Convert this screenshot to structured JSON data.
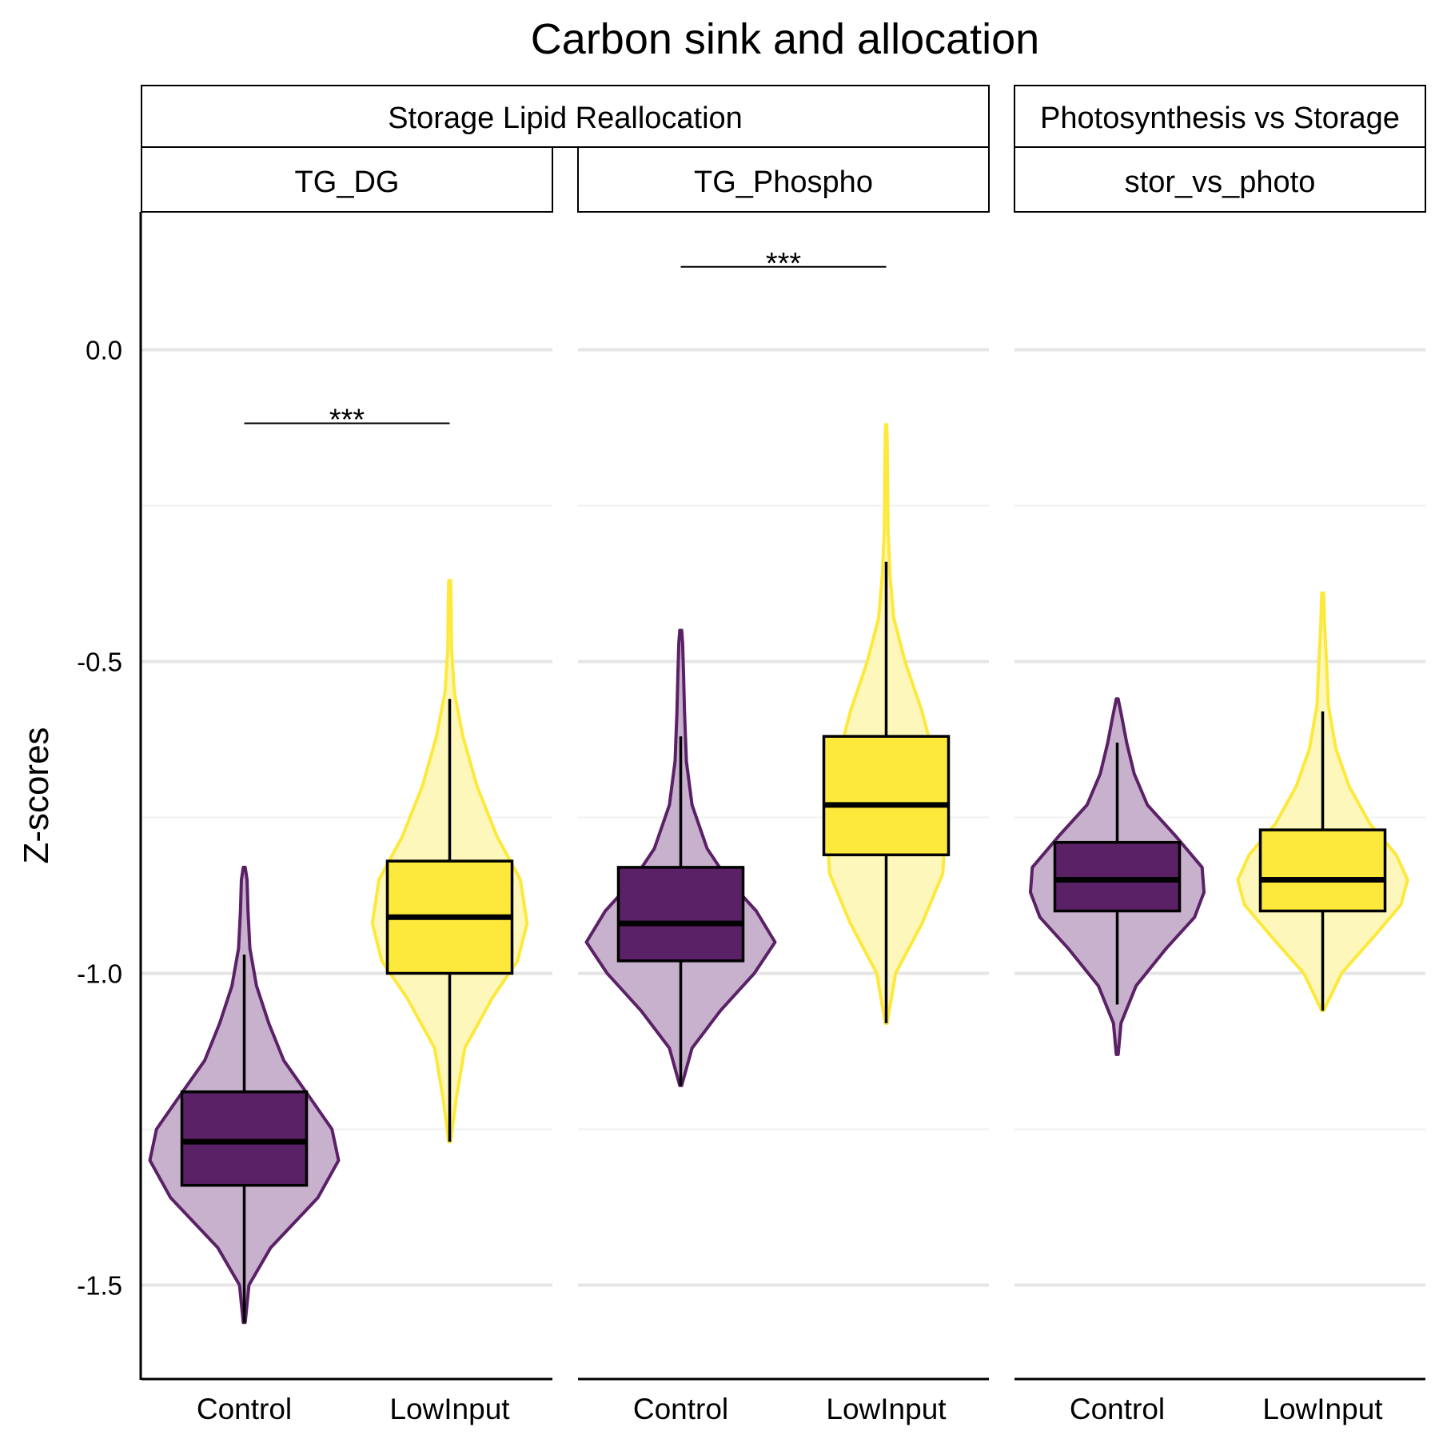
{
  "chart_data": {
    "type": "violin",
    "title": "Carbon sink and allocation",
    "ylabel": "Z-scores",
    "xlabel": "",
    "ylim": [
      -1.65,
      0.22
    ],
    "yticks": [
      0.0,
      -0.5,
      -1.0,
      -1.5
    ],
    "ytick_labels": [
      "0.0",
      "-0.5",
      "-1.0",
      "-1.5"
    ],
    "grid": true,
    "legend": "none",
    "colors": {
      "Control": "#5b2167",
      "Control_fill": "#c7b1cc",
      "LowInput": "#fde93b",
      "LowInput_fill": "#fdf7bc",
      "grid": "#e5e5e5"
    },
    "groups": [
      {
        "group": "Storage Lipid Reallocation",
        "panels": [
          {
            "panel": "TG_DG",
            "significance": "***",
            "sig_y": -0.118,
            "categories": [
              {
                "name": "Control",
                "violin_min": -1.56,
                "violin_max": -0.83,
                "whisker_low": -1.56,
                "whisker_high": -0.97,
                "q1": -1.34,
                "median": -1.27,
                "q3": -1.19,
                "density": [
                  [
                    -1.56,
                    0.01
                  ],
                  [
                    -1.5,
                    0.05
                  ],
                  [
                    -1.44,
                    0.28
                  ],
                  [
                    -1.36,
                    0.78
                  ],
                  [
                    -1.3,
                    1.0
                  ],
                  [
                    -1.25,
                    0.93
                  ],
                  [
                    -1.2,
                    0.7
                  ],
                  [
                    -1.14,
                    0.42
                  ],
                  [
                    -1.08,
                    0.26
                  ],
                  [
                    -1.02,
                    0.13
                  ],
                  [
                    -0.96,
                    0.06
                  ],
                  [
                    -0.9,
                    0.04
                  ],
                  [
                    -0.85,
                    0.03
                  ],
                  [
                    -0.83,
                    0.01
                  ]
                ]
              },
              {
                "name": "LowInput",
                "violin_min": -1.27,
                "violin_max": -0.37,
                "whisker_low": -1.27,
                "whisker_high": -0.56,
                "q1": -1.0,
                "median": -0.91,
                "q3": -0.82,
                "density": [
                  [
                    -1.27,
                    0.01
                  ],
                  [
                    -1.2,
                    0.07
                  ],
                  [
                    -1.12,
                    0.16
                  ],
                  [
                    -1.04,
                    0.45
                  ],
                  [
                    -0.98,
                    0.72
                  ],
                  [
                    -0.92,
                    0.82
                  ],
                  [
                    -0.85,
                    0.75
                  ],
                  [
                    -0.78,
                    0.5
                  ],
                  [
                    -0.7,
                    0.29
                  ],
                  [
                    -0.62,
                    0.14
                  ],
                  [
                    -0.55,
                    0.05
                  ],
                  [
                    -0.48,
                    0.02
                  ],
                  [
                    -0.4,
                    0.015
                  ],
                  [
                    -0.37,
                    0.01
                  ]
                ]
              }
            ]
          },
          {
            "panel": "TG_Phospho",
            "significance": "***",
            "sig_y": 0.133,
            "categories": [
              {
                "name": "Control",
                "violin_min": -1.18,
                "violin_max": -0.45,
                "whisker_low": -1.18,
                "whisker_high": -0.62,
                "q1": -0.98,
                "median": -0.92,
                "q3": -0.83,
                "density": [
                  [
                    -1.18,
                    0.01
                  ],
                  [
                    -1.12,
                    0.12
                  ],
                  [
                    -1.06,
                    0.42
                  ],
                  [
                    -1.0,
                    0.78
                  ],
                  [
                    -0.95,
                    1.0
                  ],
                  [
                    -0.9,
                    0.8
                  ],
                  [
                    -0.85,
                    0.5
                  ],
                  [
                    -0.8,
                    0.28
                  ],
                  [
                    -0.73,
                    0.12
                  ],
                  [
                    -0.66,
                    0.06
                  ],
                  [
                    -0.58,
                    0.04
                  ],
                  [
                    -0.52,
                    0.03
                  ],
                  [
                    -0.47,
                    0.02
                  ],
                  [
                    -0.45,
                    0.01
                  ]
                ]
              },
              {
                "name": "LowInput",
                "violin_min": -1.08,
                "violin_max": -0.12,
                "whisker_low": -1.08,
                "whisker_high": -0.34,
                "q1": -0.81,
                "median": -0.73,
                "q3": -0.62,
                "density": [
                  [
                    -1.08,
                    0.01
                  ],
                  [
                    -1.0,
                    0.1
                  ],
                  [
                    -0.92,
                    0.38
                  ],
                  [
                    -0.84,
                    0.6
                  ],
                  [
                    -0.76,
                    0.63
                  ],
                  [
                    -0.68,
                    0.55
                  ],
                  [
                    -0.58,
                    0.38
                  ],
                  [
                    -0.5,
                    0.2
                  ],
                  [
                    -0.43,
                    0.08
                  ],
                  [
                    -0.36,
                    0.04
                  ],
                  [
                    -0.29,
                    0.02
                  ],
                  [
                    -0.2,
                    0.015
                  ],
                  [
                    -0.14,
                    0.01
                  ],
                  [
                    -0.12,
                    0.005
                  ]
                ]
              }
            ]
          }
        ]
      },
      {
        "group": "Photosynthesis vs Storage",
        "panels": [
          {
            "panel": "stor_vs_photo",
            "significance": "",
            "categories": [
              {
                "name": "Control",
                "violin_min": -1.13,
                "violin_max": -0.56,
                "whisker_low": -1.05,
                "whisker_high": -0.63,
                "q1": -0.9,
                "median": -0.85,
                "q3": -0.79,
                "density": [
                  [
                    -1.13,
                    0.01
                  ],
                  [
                    -1.08,
                    0.04
                  ],
                  [
                    -1.02,
                    0.2
                  ],
                  [
                    -0.96,
                    0.52
                  ],
                  [
                    -0.91,
                    0.82
                  ],
                  [
                    -0.87,
                    0.92
                  ],
                  [
                    -0.83,
                    0.9
                  ],
                  [
                    -0.78,
                    0.62
                  ],
                  [
                    -0.73,
                    0.32
                  ],
                  [
                    -0.68,
                    0.18
                  ],
                  [
                    -0.63,
                    0.1
                  ],
                  [
                    -0.59,
                    0.05
                  ],
                  [
                    -0.56,
                    0.01
                  ]
                ]
              },
              {
                "name": "LowInput",
                "violin_min": -1.06,
                "violin_max": -0.39,
                "whisker_low": -1.06,
                "whisker_high": -0.58,
                "q1": -0.9,
                "median": -0.85,
                "q3": -0.77,
                "density": [
                  [
                    -1.06,
                    0.01
                  ],
                  [
                    -1.0,
                    0.2
                  ],
                  [
                    -0.94,
                    0.55
                  ],
                  [
                    -0.89,
                    0.83
                  ],
                  [
                    -0.85,
                    0.9
                  ],
                  [
                    -0.81,
                    0.78
                  ],
                  [
                    -0.76,
                    0.5
                  ],
                  [
                    -0.7,
                    0.28
                  ],
                  [
                    -0.64,
                    0.14
                  ],
                  [
                    -0.57,
                    0.06
                  ],
                  [
                    -0.5,
                    0.04
                  ],
                  [
                    -0.44,
                    0.02
                  ],
                  [
                    -0.39,
                    0.01
                  ]
                ]
              }
            ]
          }
        ]
      }
    ]
  }
}
